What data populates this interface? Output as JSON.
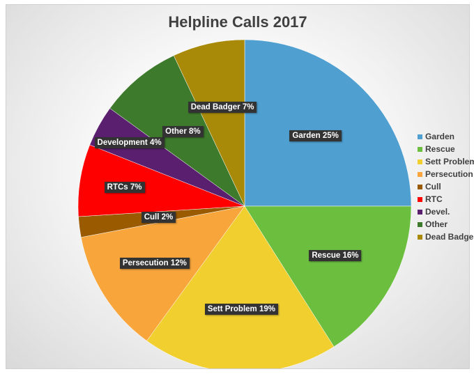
{
  "chart_data": {
    "type": "pie",
    "title": "Helpline Calls 2017",
    "slices": [
      {
        "legend": "Garden",
        "label": "Garden 25%",
        "value": 25,
        "color": "#4f9fd1"
      },
      {
        "legend": "Rescue",
        "label": "Rescue 16%",
        "value": 16,
        "color": "#6cbe3f"
      },
      {
        "legend": "Sett Problem",
        "label": "Sett Problem 19%",
        "value": 19,
        "color": "#f0cf2f"
      },
      {
        "legend": "Persecution",
        "label": "Persecution 12%",
        "value": 12,
        "color": "#f8a53c"
      },
      {
        "legend": "Cull",
        "label": "Cull 2%",
        "value": 2,
        "color": "#9a5a00"
      },
      {
        "legend": "RTC",
        "label": "RTCs 7%",
        "value": 7,
        "color": "#ff0000"
      },
      {
        "legend": "Devel.",
        "label": "Development 4%",
        "value": 4,
        "color": "#5a1f6e"
      },
      {
        "legend": "Other",
        "label": "Other 8%",
        "value": 8,
        "color": "#3d7a2c"
      },
      {
        "legend": "Dead Badger",
        "label": "Dead Badger 7%",
        "value": 7,
        "color": "#a88a08"
      }
    ],
    "legend_position": "right"
  }
}
